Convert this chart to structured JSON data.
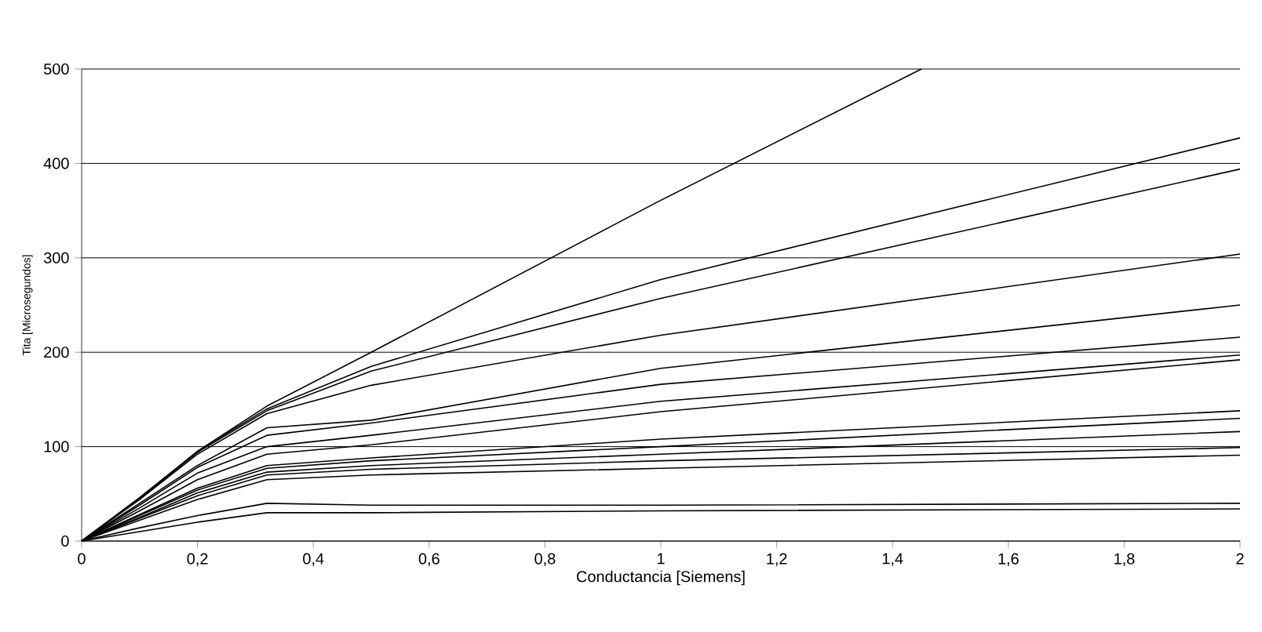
{
  "chart_data": {
    "type": "line",
    "xlabel": "Conductancia [Siemens]",
    "ylabel": "Tita [Microsegundos]",
    "x": [
      0,
      0.1,
      0.2,
      0.32,
      0.5,
      1,
      2
    ],
    "series": [
      {
        "color": "#000000",
        "x": [
          0,
          0.1,
          0.2,
          0.32,
          0.5,
          1,
          1.45
        ],
        "values": [
          0,
          45,
          95,
          143,
          200,
          361,
          500
        ]
      },
      {
        "color": "#000000",
        "values": [
          0,
          46,
          95,
          140,
          185,
          277,
          427
        ]
      },
      {
        "color": "#000000",
        "values": [
          0,
          45,
          94,
          138,
          180,
          257,
          394
        ]
      },
      {
        "color": "#000000",
        "values": [
          0,
          44,
          92,
          135,
          165,
          218,
          304
        ]
      },
      {
        "color": "#000000",
        "values": [
          0,
          40,
          80,
          120,
          128,
          183,
          250
        ]
      },
      {
        "color": "#000000",
        "values": [
          0,
          38,
          78,
          112,
          125,
          166,
          216
        ]
      },
      {
        "color": "#000000",
        "values": [
          0,
          35,
          72,
          100,
          112,
          148,
          197
        ]
      },
      {
        "color": "#000000",
        "values": [
          0,
          32,
          65,
          92,
          102,
          137,
          192
        ]
      },
      {
        "color": "#000000",
        "values": [
          0,
          28,
          56,
          80,
          88,
          108,
          138
        ]
      },
      {
        "color": "#000000",
        "values": [
          0,
          27,
          54,
          77,
          85,
          100,
          130
        ]
      },
      {
        "color": "#000000",
        "values": [
          0,
          25,
          51,
          73,
          80,
          92,
          116
        ]
      },
      {
        "color": "#000000",
        "values": [
          0,
          24,
          48,
          70,
          76,
          85,
          99
        ]
      },
      {
        "color": "#000000",
        "values": [
          0,
          22,
          44,
          65,
          70,
          77,
          91
        ]
      },
      {
        "color": "#000000",
        "values": [
          0,
          14,
          27,
          40,
          38,
          38,
          40
        ]
      },
      {
        "color": "#000000",
        "values": [
          0,
          10,
          20,
          30,
          30,
          32,
          34
        ]
      }
    ],
    "xlim": [
      0,
      2
    ],
    "ylim": [
      0,
      500
    ],
    "xticks": [
      0,
      {
        "value": 0.2,
        "label": "0,2"
      },
      {
        "value": 0.4,
        "label": "0,4"
      },
      {
        "value": 0.6,
        "label": "0,6"
      },
      {
        "value": 0.8,
        "label": "0,8"
      },
      1,
      {
        "value": 1.2,
        "label": "1,2"
      },
      {
        "value": 1.4,
        "label": "1,4"
      },
      {
        "value": 1.6,
        "label": "1,6"
      },
      {
        "value": 1.8,
        "label": "1,8"
      },
      2
    ],
    "yticks": [
      0,
      100,
      200,
      300,
      400,
      500
    ],
    "grid": "y",
    "marker": "none",
    "line_style": "solid"
  }
}
